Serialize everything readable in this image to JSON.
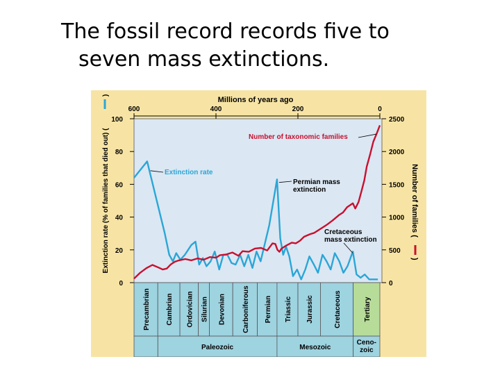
{
  "slide": {
    "title_line1": "The fossil record records five to",
    "title_line2": "seven mass extinctions."
  },
  "colors": {
    "figure_bg": "#f7e4a4",
    "plot_bg": "#dbe7f3",
    "extinction_line": "#2aa6d6",
    "families_line": "#c8102e",
    "period_band": "#9ed3e0",
    "tertiary_band": "#b7dc9a",
    "era_band": "#9ed3e0"
  },
  "chart_data": {
    "type": "line",
    "title": "",
    "top_axis": {
      "label": "Millions of years ago",
      "range": [
        600,
        0
      ],
      "ticks": [
        600,
        400,
        200,
        0
      ],
      "tick_labels": [
        "600",
        "400",
        "200",
        "0"
      ]
    },
    "left_axis": {
      "label": "Extinction rate (% of families that died out) (",
      "label_tail": ")",
      "range": [
        0,
        100
      ],
      "ticks": [
        0,
        20,
        40,
        60,
        80,
        100
      ],
      "tick_labels": [
        "0",
        "20",
        "40",
        "60",
        "80",
        "100"
      ]
    },
    "right_axis": {
      "label": "Number of families (",
      "label_tail": ")",
      "range": [
        0,
        2500
      ],
      "ticks": [
        0,
        500,
        1000,
        1500,
        2000,
        2500
      ],
      "tick_labels": [
        "0",
        "500",
        "1000",
        "1500",
        "2000",
        "2500"
      ]
    },
    "series": [
      {
        "name": "Extinction rate",
        "axis": "left",
        "points": [
          [
            600,
            64
          ],
          [
            568,
            74
          ],
          [
            525,
            30
          ],
          [
            514,
            17
          ],
          [
            505,
            13
          ],
          [
            497,
            18
          ],
          [
            487,
            14
          ],
          [
            476,
            17
          ],
          [
            460,
            23
          ],
          [
            450,
            25
          ],
          [
            441,
            11
          ],
          [
            432,
            15
          ],
          [
            423,
            10
          ],
          [
            413,
            13
          ],
          [
            403,
            19
          ],
          [
            392,
            8
          ],
          [
            382,
            17
          ],
          [
            372,
            17
          ],
          [
            362,
            12
          ],
          [
            352,
            11
          ],
          [
            341,
            17
          ],
          [
            331,
            10
          ],
          [
            321,
            17
          ],
          [
            311,
            9
          ],
          [
            301,
            19
          ],
          [
            291,
            13
          ],
          [
            270,
            35
          ],
          [
            251,
            63
          ],
          [
            243,
            27
          ],
          [
            236,
            17
          ],
          [
            229,
            22
          ],
          [
            221,
            16
          ],
          [
            212,
            4
          ],
          [
            202,
            8
          ],
          [
            192,
            2
          ],
          [
            182,
            8
          ],
          [
            172,
            16
          ],
          [
            161,
            11
          ],
          [
            151,
            6
          ],
          [
            140,
            17
          ],
          [
            130,
            13
          ],
          [
            120,
            8
          ],
          [
            110,
            18
          ],
          [
            99,
            13
          ],
          [
            89,
            6
          ],
          [
            79,
            10
          ],
          [
            66,
            19
          ],
          [
            57,
            5
          ],
          [
            47,
            3
          ],
          [
            37,
            5
          ],
          [
            26,
            2
          ],
          [
            16,
            2
          ],
          [
            5,
            2
          ]
        ]
      },
      {
        "name": "Number of taxonomic families",
        "axis": "right",
        "points": [
          [
            600,
            60
          ],
          [
            585,
            150
          ],
          [
            570,
            220
          ],
          [
            555,
            270
          ],
          [
            540,
            230
          ],
          [
            530,
            200
          ],
          [
            520,
            215
          ],
          [
            510,
            280
          ],
          [
            500,
            320
          ],
          [
            490,
            340
          ],
          [
            475,
            360
          ],
          [
            460,
            340
          ],
          [
            445,
            370
          ],
          [
            430,
            350
          ],
          [
            415,
            390
          ],
          [
            400,
            380
          ],
          [
            390,
            420
          ],
          [
            375,
            430
          ],
          [
            360,
            460
          ],
          [
            345,
            410
          ],
          [
            335,
            480
          ],
          [
            320,
            470
          ],
          [
            305,
            520
          ],
          [
            290,
            530
          ],
          [
            275,
            490
          ],
          [
            262,
            600
          ],
          [
            255,
            590
          ],
          [
            250,
            500
          ],
          [
            245,
            470
          ],
          [
            240,
            520
          ],
          [
            230,
            560
          ],
          [
            215,
            610
          ],
          [
            205,
            600
          ],
          [
            195,
            640
          ],
          [
            185,
            700
          ],
          [
            170,
            740
          ],
          [
            160,
            760
          ],
          [
            145,
            820
          ],
          [
            130,
            880
          ],
          [
            115,
            950
          ],
          [
            100,
            1030
          ],
          [
            90,
            1070
          ],
          [
            80,
            1150
          ],
          [
            66,
            1210
          ],
          [
            60,
            1130
          ],
          [
            52,
            1230
          ],
          [
            45,
            1390
          ],
          [
            38,
            1560
          ],
          [
            32,
            1770
          ],
          [
            24,
            1950
          ],
          [
            16,
            2150
          ],
          [
            8,
            2270
          ],
          [
            3,
            2350
          ],
          [
            0,
            2400
          ]
        ]
      }
    ],
    "annotations": [
      {
        "text": "Number of taxonomic families",
        "points_to": [
          5,
          2330
        ]
      },
      {
        "text": "Extinction rate",
        "points_to": [
          565,
          70
        ]
      },
      {
        "text": "Permian mass\nextinction",
        "points_to": [
          251,
          62
        ]
      },
      {
        "text": "Cretaceous\nmass extinction",
        "points_to": [
          66,
          18
        ]
      }
    ],
    "periods": [
      {
        "name": "Precambrian",
        "start": 600,
        "end": 542
      },
      {
        "name": "Cambrian",
        "start": 542,
        "end": 488
      },
      {
        "name": "Ordovician",
        "start": 488,
        "end": 443
      },
      {
        "name": "Silurian",
        "start": 443,
        "end": 416
      },
      {
        "name": "Devonian",
        "start": 416,
        "end": 359
      },
      {
        "name": "Carboniferous",
        "start": 359,
        "end": 299
      },
      {
        "name": "Permian",
        "start": 299,
        "end": 251
      },
      {
        "name": "Triassic",
        "start": 251,
        "end": 200
      },
      {
        "name": "Jurassic",
        "start": 200,
        "end": 145
      },
      {
        "name": "Cretaceous",
        "start": 145,
        "end": 65
      },
      {
        "name": "Tertiary",
        "start": 65,
        "end": 0
      }
    ],
    "eras": [
      {
        "name": "Paleozoic",
        "start": 542,
        "end": 251
      },
      {
        "name": "Mesozoic",
        "start": 251,
        "end": 65
      },
      {
        "name": "Ceno-\nzoic",
        "start": 65,
        "end": 0
      }
    ],
    "grid": false,
    "legend": "inline labels"
  }
}
